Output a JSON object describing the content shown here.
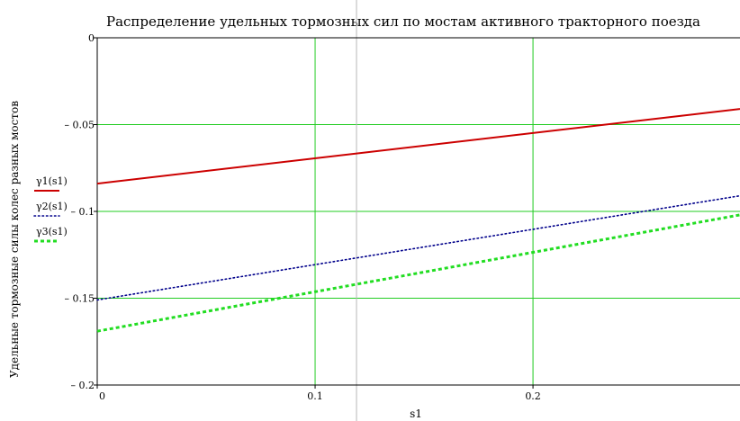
{
  "chart_data": {
    "type": "line",
    "title": "Распределение удельных тормозных сил по мостам активного тракторного поезда",
    "xlabel": "s1",
    "ylabel": "Удельные тормозные силы колес разных мостов",
    "xlim": [
      0,
      0.295
    ],
    "ylim": [
      -0.2,
      0
    ],
    "x_ticks": [
      0,
      0.1,
      0.2
    ],
    "x_tick_labels": [
      "0",
      "0.1",
      "0.2"
    ],
    "y_ticks": [
      0,
      -0.05,
      -0.1,
      -0.15,
      -0.2
    ],
    "y_tick_labels": [
      "0",
      "– 0.05",
      "– 0.1",
      "– 0.15",
      "– 0.2"
    ],
    "grid": true,
    "grid_color": "#22cc22",
    "cursor_x": 0.119,
    "legend_position": "left",
    "series": [
      {
        "name": "γ1(s1)",
        "color": "#cc0000",
        "style": "solid",
        "x": [
          0,
          0.295
        ],
        "y": [
          -0.084,
          -0.041
        ]
      },
      {
        "name": "γ2(s1)",
        "color": "#00008b",
        "style": "dotted",
        "x": [
          0,
          0.295
        ],
        "y": [
          -0.151,
          -0.091
        ]
      },
      {
        "name": "γ3(s1)",
        "color": "#22dd22",
        "style": "dashed",
        "x": [
          0,
          0.295
        ],
        "y": [
          -0.169,
          -0.102
        ]
      }
    ]
  }
}
